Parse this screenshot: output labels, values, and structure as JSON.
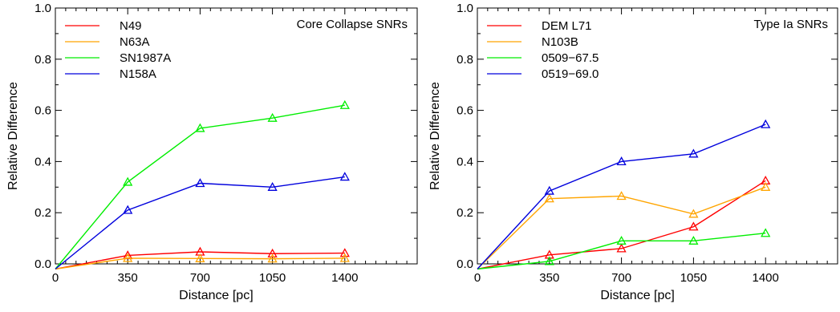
{
  "chart_data": [
    {
      "type": "line",
      "title": "Core Collapse SNRs",
      "xlabel": "Distance [pc]",
      "ylabel": "Relative Difference",
      "xlim": [
        0,
        1750
      ],
      "ylim": [
        0,
        1.0
      ],
      "x": [
        0,
        350,
        700,
        1050,
        1400
      ],
      "xticks": [
        "0",
        "350",
        "700",
        "1050",
        "1400"
      ],
      "yticks": [
        "0.0",
        "0.2",
        "0.4",
        "0.6",
        "0.8",
        "1.0"
      ],
      "marker": "triangle-open",
      "legend_position": "top-left",
      "series": [
        {
          "name": "N49",
          "color": "#ff0000",
          "values": [
            -0.02,
            0.033,
            0.047,
            0.04,
            0.042
          ]
        },
        {
          "name": "N63A",
          "color": "#ffa500",
          "values": [
            -0.02,
            0.022,
            0.021,
            0.02,
            0.022
          ]
        },
        {
          "name": "SN1987A",
          "color": "#00ee00",
          "values": [
            -0.02,
            0.32,
            0.53,
            0.57,
            0.62
          ]
        },
        {
          "name": "N158A",
          "color": "#0000dd",
          "values": [
            -0.02,
            0.21,
            0.315,
            0.3,
            0.34
          ]
        }
      ]
    },
    {
      "type": "line",
      "title": "Type Ia SNRs",
      "xlabel": "Distance [pc]",
      "ylabel": "Relative Difference",
      "xlim": [
        0,
        1750
      ],
      "ylim": [
        0,
        1.0
      ],
      "x": [
        0,
        350,
        700,
        1050,
        1400
      ],
      "xticks": [
        "0",
        "350",
        "700",
        "1050",
        "1400"
      ],
      "yticks": [
        "0.0",
        "0.2",
        "0.4",
        "0.6",
        "0.8",
        "1.0"
      ],
      "marker": "triangle-open",
      "legend_position": "top-left",
      "series": [
        {
          "name": "DEM L71",
          "color": "#ff0000",
          "values": [
            -0.02,
            0.035,
            0.06,
            0.145,
            0.325
          ]
        },
        {
          "name": "N103B",
          "color": "#ffa500",
          "values": [
            -0.02,
            0.255,
            0.265,
            0.195,
            0.3
          ]
        },
        {
          "name": "0509−67.5",
          "color": "#00ee00",
          "values": [
            -0.02,
            0.01,
            0.09,
            0.09,
            0.12
          ]
        },
        {
          "name": "0519−69.0",
          "color": "#0000dd",
          "values": [
            -0.02,
            0.285,
            0.4,
            0.43,
            0.545
          ]
        }
      ]
    }
  ]
}
